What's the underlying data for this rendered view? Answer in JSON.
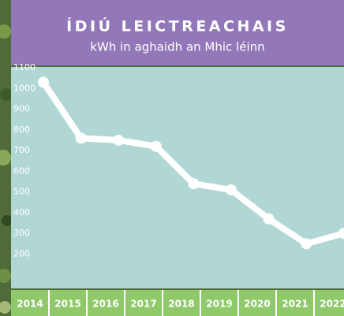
{
  "chart_data": {
    "type": "line",
    "title": "ÍDIÚ LEICTREACHAIS",
    "subtitle": "kWh in aghaidh an Mhic léinn",
    "categories": [
      "2014",
      "2015",
      "2016",
      "2017",
      "2018",
      "2019",
      "2020",
      "2021",
      "2022"
    ],
    "values": [
      1030,
      760,
      750,
      720,
      540,
      510,
      370,
      250,
      300
    ],
    "color": "#ffffff",
    "ylim": [
      0,
      1100
    ],
    "yticks": [
      200,
      300,
      400,
      500,
      600,
      700,
      800,
      900,
      1000,
      1100
    ]
  }
}
